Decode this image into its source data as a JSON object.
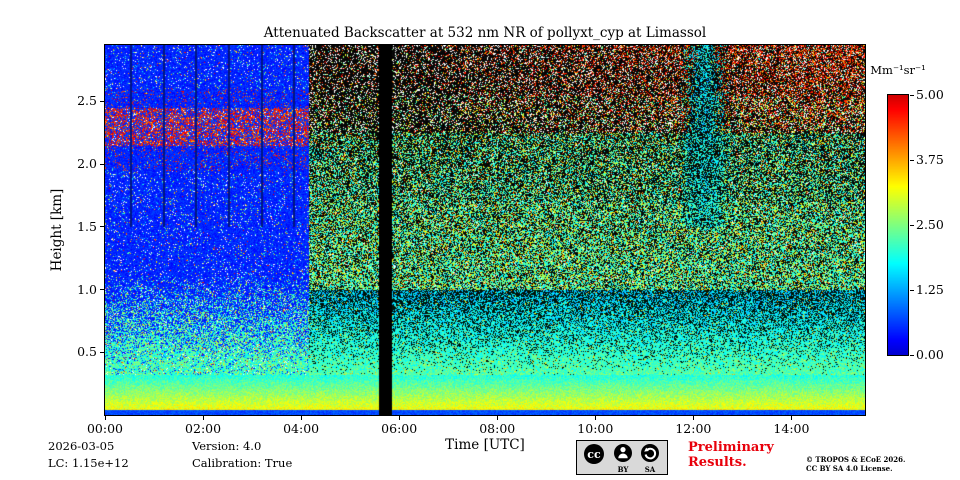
{
  "chart_data": {
    "type": "heatmap",
    "title": "Attenuated Backscatter at 532 nm NR of pollyxt_cyp at Limassol",
    "xlabel": "Time [UTC]",
    "ylabel": "Height [km]",
    "x_range_hours": [
      0,
      15.5
    ],
    "x_ticks": [
      {
        "hour": 0,
        "label": "00:00"
      },
      {
        "hour": 2,
        "label": "02:00"
      },
      {
        "hour": 4,
        "label": "04:00"
      },
      {
        "hour": 6,
        "label": "06:00"
      },
      {
        "hour": 8,
        "label": "08:00"
      },
      {
        "hour": 10,
        "label": "10:00"
      },
      {
        "hour": 12,
        "label": "12:00"
      },
      {
        "hour": 14,
        "label": "14:00"
      }
    ],
    "y_range_km": [
      0,
      2.95
    ],
    "y_ticks": [
      {
        "km": 0.5,
        "label": "0.5"
      },
      {
        "km": 1.0,
        "label": "1.0"
      },
      {
        "km": 1.5,
        "label": "1.5"
      },
      {
        "km": 2.0,
        "label": "2.0"
      },
      {
        "km": 2.5,
        "label": "2.5"
      }
    ],
    "colorbar": {
      "label": "Mm⁻¹sr⁻¹",
      "vmin": 0,
      "vmax": 5,
      "colormap": "jet",
      "ticks": [
        {
          "value": 5.0,
          "label": "5.00"
        },
        {
          "value": 3.75,
          "label": "3.75"
        },
        {
          "value": 2.5,
          "label": "2.50"
        },
        {
          "value": 1.25,
          "label": "1.25"
        },
        {
          "value": 0.0,
          "label": "0.00"
        }
      ]
    },
    "features": {
      "left_calibration_region_end_hour": 4.15,
      "data_gap_hours": [
        5.58,
        5.84
      ],
      "aerosol_layer_km": [
        2.15,
        2.45
      ],
      "plume": {
        "hours": [
          11.7,
          12.75
        ],
        "min_km": 1.5
      },
      "surface_layer_top_km": 0.32,
      "vertical_line_hours": [
        0.5,
        1.17,
        1.83,
        2.5,
        3.17,
        3.83
      ]
    }
  },
  "footer": {
    "date": "2026-03-05",
    "lc": "LC: 1.15e+12",
    "version": "Version: 4.0",
    "calibration": "Calibration: True",
    "preliminary_line1": "Preliminary",
    "preliminary_line2": "Results.",
    "copyright_line1": "© TROPOS & ECoE 2026.",
    "copyright_line2": "CC BY SA 4.0 License.",
    "badge": {
      "cc": "cc",
      "by": "BY",
      "sa": "SA"
    }
  },
  "colors": {
    "preliminary": "#e8000b",
    "background": "#ffffff"
  }
}
